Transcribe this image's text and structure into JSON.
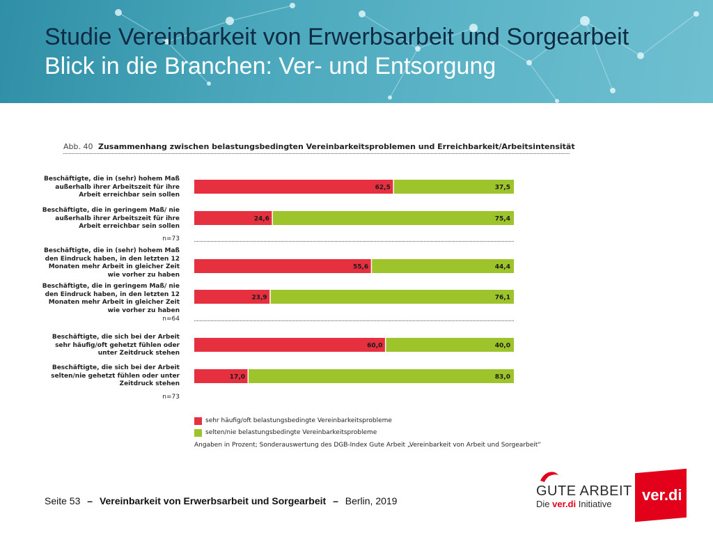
{
  "header": {
    "title_line1": "Studie Vereinbarkeit von Erwerbsarbeit und Sorgearbeit",
    "title_line2": "Blick in die Branchen: Ver- und Entsorgung"
  },
  "figure": {
    "number": "Abb. 40",
    "title": "Zusammenhang zwischen belastungsbedingten Vereinbarkeitsproblemen und Erreichbarkeit/Arbeitsintensität"
  },
  "row_labels": [
    "Beschäftigte, die in (sehr) hohem Maß außerhalb ihrer Arbeitszeit für ihre Arbeit erreichbar sein sollen",
    "Beschäftigte, die in geringem Maß/ nie außerhalb ihrer Arbeitszeit für ihre Arbeit erreichbar sein sollen",
    "Beschäftigte, die in (sehr) hohem Maß den Eindruck haben, in den letzten 12 Monaten mehr Arbeit in gleicher Zeit wie vorher zu haben",
    "Beschäftigte, die in geringem Maß/ nie den Eindruck haben, in den letzten 12 Monaten mehr Arbeit in gleicher Zeit wie vorher zu haben",
    "Beschäftigte, die sich bei der Arbeit sehr häufig/oft gehetzt fühlen oder unter Zeitdruck stehen",
    "Beschäftigte, die sich bei der Arbeit selten/nie gehetzt fühlen oder unter Zeitdruck stehen"
  ],
  "n_labels": [
    "n=73",
    "n=64",
    "n=73"
  ],
  "legend": {
    "red": "sehr häufig/oft belastungsbedingte Vereinbarkeitsprobleme",
    "green": "selten/nie belastungsbedingte Vereinbarkeitsprobleme"
  },
  "source_note": "Angaben in Prozent; Sonderauswertung des DGB-Index Gute Arbeit „Vereinbarkeit von Arbeit und Sorgearbeit“",
  "chart_data": {
    "type": "bar",
    "orientation": "horizontal",
    "stacked": true,
    "title": "Zusammenhang zwischen belastungsbedingten Vereinbarkeitsproblemen und Erreichbarkeit/Arbeitsintensität",
    "unit": "Prozent",
    "xlim": [
      0,
      100
    ],
    "categories": [
      "Beschäftigte, die in (sehr) hohem Maß außerhalb ihrer Arbeitszeit für ihre Arbeit erreichbar sein sollen",
      "Beschäftigte, die in geringem Maß/ nie außerhalb ihrer Arbeitszeit für ihre Arbeit erreichbar sein sollen",
      "Beschäftigte, die in (sehr) hohem Maß den Eindruck haben, in den letzten 12 Monaten mehr Arbeit in gleicher Zeit wie vorher zu haben",
      "Beschäftigte, die in geringem Maß/ nie den Eindruck haben, in den letzten 12 Monaten mehr Arbeit in gleicher Zeit wie vorher zu haben",
      "Beschäftigte, die sich bei der Arbeit sehr häufig/oft gehetzt fühlen oder unter Zeitdruck stehen",
      "Beschäftigte, die sich bei der Arbeit selten/nie gehetzt fühlen oder unter Zeitdruck stehen"
    ],
    "series": [
      {
        "name": "sehr häufig/oft belastungsbedingte Vereinbarkeitsprobleme",
        "color": "#e63040",
        "values": [
          62.5,
          24.6,
          55.6,
          23.9,
          60.0,
          17.0
        ],
        "labels": [
          "62,5",
          "24,6",
          "55,6",
          "23,9",
          "60,0",
          "17,0"
        ]
      },
      {
        "name": "selten/nie belastungsbedingte Vereinbarkeitsprobleme",
        "color": "#9dc52b",
        "values": [
          37.5,
          75.4,
          44.4,
          76.1,
          40.0,
          83.0
        ],
        "labels": [
          "37,5",
          "75,4",
          "44,4",
          "76,1",
          "40,0",
          "83,0"
        ]
      }
    ],
    "legend_position": "bottom-left"
  },
  "footer": {
    "page": "Seite 53",
    "dash1": "–",
    "title": "Vereinbarkeit von Erwerbsarbeit und Sorgearbeit",
    "dash2": "–",
    "place_year": "Berlin, 2019"
  },
  "logos": {
    "gute_arbeit_main": "GUTE ARBEIT",
    "gute_arbeit_sub_prefix": "Die",
    "gute_arbeit_sub_brand": "ver.di",
    "gute_arbeit_sub_suffix": "Initiative",
    "verdi": "ver.di"
  }
}
